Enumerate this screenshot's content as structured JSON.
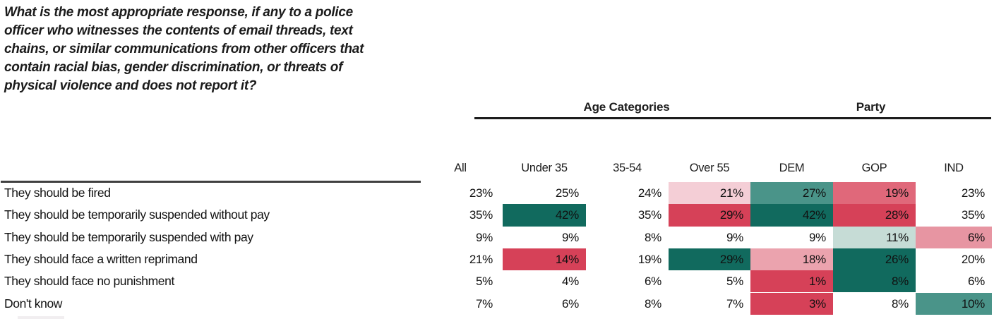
{
  "question": {
    "lines": [
      "What is the most appropriate response, if any to a police",
      "officer who witnesses the contents of email threads, text",
      "chains, or similar communications from other officers that",
      "contain racial bias, gender discrimination, or threats of",
      "physical violence and does not report it?"
    ]
  },
  "chart_data": {
    "type": "heatmap",
    "title": "What is the most appropriate response, if any to a police officer who witnesses the contents of email threads, text chains, or similar communications from other officers that contain racial bias, gender discrimination, or threats of physical violence and does not report it?",
    "column_groups": [
      {
        "label": "Age Categories",
        "columns": [
          "Under 35",
          "35-54",
          "Over 55"
        ]
      },
      {
        "label": "Party",
        "columns": [
          "DEM",
          "GOP",
          "IND"
        ]
      }
    ],
    "columns": [
      "All",
      "Under 35",
      "35-54",
      "Over 55",
      "DEM",
      "GOP",
      "IND"
    ],
    "rows": [
      "They should be fired",
      "They should be temporarily suspended without pay",
      "They should be temporarily suspended with pay",
      "They should face a written reprimand",
      "They should face no punishment",
      "Don't know"
    ],
    "values_pct": [
      [
        23,
        25,
        24,
        21,
        27,
        19,
        23
      ],
      [
        35,
        42,
        35,
        29,
        42,
        28,
        35
      ],
      [
        9,
        9,
        8,
        9,
        9,
        11,
        6
      ],
      [
        21,
        14,
        19,
        29,
        18,
        26,
        20
      ],
      [
        5,
        4,
        6,
        5,
        1,
        8,
        6
      ],
      [
        7,
        6,
        8,
        7,
        3,
        8,
        10
      ]
    ],
    "cell_fills": [
      [
        null,
        null,
        null,
        "light_pink",
        "med_teal",
        "rose",
        null
      ],
      [
        null,
        "dark_teal",
        null,
        "red",
        "dark_teal",
        "red",
        null
      ],
      [
        null,
        null,
        null,
        null,
        null,
        "light_teal",
        "pink_med2"
      ],
      [
        null,
        "red",
        null,
        "dark_teal",
        "pink_med",
        "dark_teal",
        null
      ],
      [
        null,
        null,
        null,
        null,
        "red",
        "dark_teal",
        null
      ],
      [
        null,
        null,
        null,
        null,
        "red",
        null,
        "med_teal"
      ]
    ],
    "palette": {
      "dark_teal": "#116a5e",
      "med_teal": "#4a9489",
      "light_teal": "#c6dcd6",
      "red": "#d64158",
      "rose": "#e0687a",
      "pink_med": "#eba3ae",
      "pink_med2": "#e795a2",
      "light_pink": "#f4ced6"
    },
    "partial_legend_swatch_color": "#f1eef0"
  }
}
